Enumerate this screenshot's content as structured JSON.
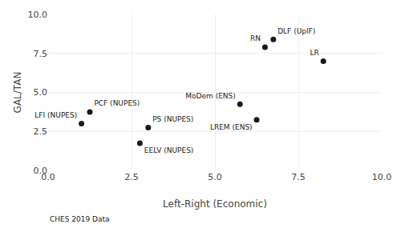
{
  "chart_data": {
    "type": "scatter",
    "x": [
      1.0,
      1.25,
      2.75,
      3.0,
      5.75,
      6.25,
      6.5,
      6.75,
      8.25
    ],
    "values": [
      3.0,
      3.75,
      1.75,
      2.75,
      4.25,
      3.25,
      7.9,
      8.4,
      7.0
    ],
    "labels": [
      "LFI (NUPES)",
      "PCF (NUPES)",
      "EELV (NUPES)",
      "PS (NUPES)",
      "MoDem (ENS)",
      "LREM (ENS)",
      "RN",
      "DLF (UplF)",
      "LR"
    ],
    "xlabel": "Left-Right (Economic)",
    "ylabel": "GAL/TAN",
    "xlim": [
      0.0,
      10.0
    ],
    "ylim": [
      0.0,
      10.0
    ],
    "xticks": [
      {
        "value": 0.0,
        "label": "0.0"
      },
      2.5,
      {
        "value": 5.0,
        "label": "5.0"
      },
      7.5,
      {
        "value": 10.0,
        "label": "10.0"
      }
    ],
    "yticks": [
      {
        "value": 0.0,
        "label": "0.0"
      },
      2.5,
      {
        "value": 5.0,
        "label": "5.0"
      },
      7.5,
      {
        "value": 10.0,
        "label": "10.0"
      }
    ],
    "annotations": [
      {
        "text": "CHES 2019 Data"
      }
    ],
    "color": "#1a1a1a",
    "marker": "circle",
    "grid": true
  }
}
